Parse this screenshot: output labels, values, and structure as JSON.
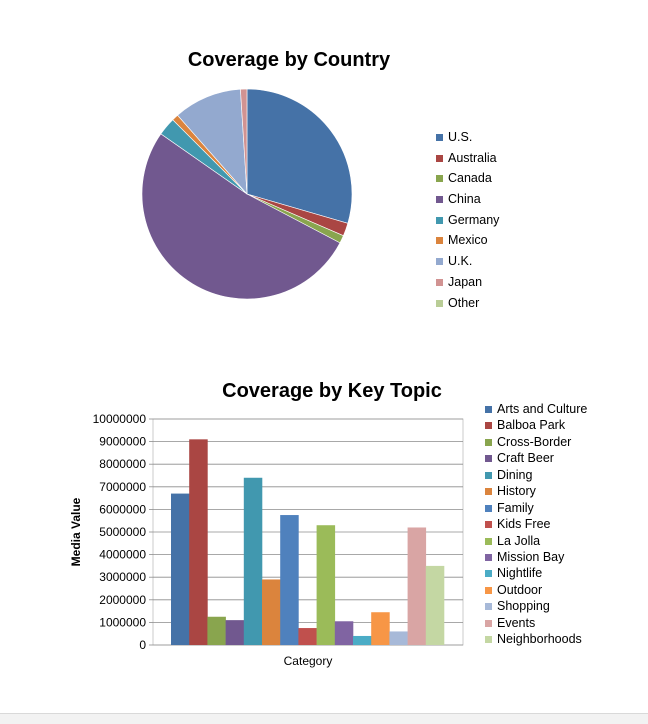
{
  "chart_data": [
    {
      "type": "pie",
      "title": "Coverage by Country",
      "categories": [
        "U.S.",
        "Australia",
        "Canada",
        "China",
        "Germany",
        "Mexico",
        "U.K.",
        "Japan",
        "Other"
      ],
      "values": [
        29.5,
        2.0,
        1.2,
        52.0,
        2.8,
        1.0,
        10.5,
        1.0,
        0.0
      ],
      "colors": [
        "#4572A7",
        "#AA4643",
        "#89A54E",
        "#71588F",
        "#4198AF",
        "#DB843D",
        "#93A9CF",
        "#D19392",
        "#B9CD96"
      ],
      "legend_position": "right"
    },
    {
      "type": "bar",
      "title": "Coverage by Key Topic",
      "xlabel": "Category",
      "ylabel": "Media Value",
      "ylim": [
        0,
        10000000
      ],
      "yticks": [
        "0",
        "1000000",
        "2000000",
        "3000000",
        "4000000",
        "5000000",
        "6000000",
        "7000000",
        "8000000",
        "9000000",
        "10000000"
      ],
      "grid": true,
      "legend_position": "right",
      "series": [
        {
          "name": "Arts and Culture",
          "value": 6700000,
          "color": "#4572A7"
        },
        {
          "name": "Balboa Park",
          "value": 9100000,
          "color": "#AA4643"
        },
        {
          "name": "Cross-Border",
          "value": 1250000,
          "color": "#89A54E"
        },
        {
          "name": "Craft Beer",
          "value": 1100000,
          "color": "#71588F"
        },
        {
          "name": "Dining",
          "value": 7400000,
          "color": "#4198AF"
        },
        {
          "name": "History",
          "value": 2900000,
          "color": "#DB843D"
        },
        {
          "name": "Family",
          "value": 5750000,
          "color": "#4F81BD"
        },
        {
          "name": "Kids Free",
          "value": 750000,
          "color": "#C0504D"
        },
        {
          "name": "La Jolla",
          "value": 5300000,
          "color": "#9BBB59"
        },
        {
          "name": "Mission Bay",
          "value": 1050000,
          "color": "#8064A2"
        },
        {
          "name": "Nightlife",
          "value": 400000,
          "color": "#4BACC6"
        },
        {
          "name": "Outdoor",
          "value": 1450000,
          "color": "#F79646"
        },
        {
          "name": "Shopping",
          "value": 600000,
          "color": "#A7B9D8"
        },
        {
          "name": "Events",
          "value": 5200000,
          "color": "#D9A5A4"
        },
        {
          "name": "Neighborhoods",
          "value": 3500000,
          "color": "#C4D7A3"
        }
      ]
    }
  ]
}
